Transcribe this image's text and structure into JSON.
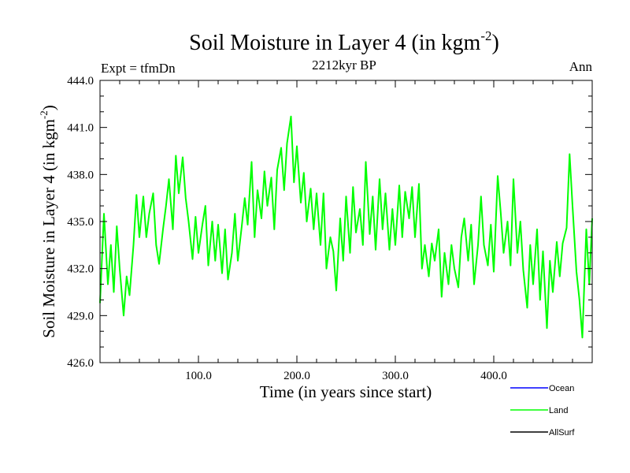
{
  "header": {
    "title_main": "Soil Moisture in Layer 4 (in kgm",
    "title_exp": "-2",
    "title_close": ")",
    "expt": "Expt = tfmDn",
    "subtitle": "2212kyr BP",
    "season": "Ann"
  },
  "legend": {
    "items": [
      {
        "label": "Ocean",
        "color": "#0000ff"
      },
      {
        "label": "Land",
        "color": "#00ff00"
      },
      {
        "label": "AllSurf",
        "color": "#000000"
      }
    ]
  },
  "chart_data": {
    "type": "line",
    "title": "Soil Moisture in Layer 4 (in kgm-2)",
    "xlabel": "Time (in years since start)",
    "ylabel_main": "Soil Moisture in Layer 4 (in kgm",
    "ylabel_exp": "-2",
    "ylabel_close": ")",
    "xlim": [
      0,
      500
    ],
    "ylim": [
      426,
      444
    ],
    "x_ticks": [
      100,
      200,
      300,
      400
    ],
    "x_tick_labels": [
      "100.0",
      "200.0",
      "300.0",
      "400.0"
    ],
    "y_ticks": [
      426,
      429,
      432,
      435,
      438,
      441,
      444
    ],
    "y_tick_labels": [
      "426.0",
      "429.0",
      "432.0",
      "435.0",
      "438.0",
      "441.0",
      "444.0"
    ],
    "series": [
      {
        "name": "Land",
        "color": "#00ff00",
        "x": [
          0,
          4,
          8,
          11,
          14,
          17,
          20,
          24,
          27,
          30,
          34,
          37,
          40,
          44,
          47,
          50,
          54,
          57,
          60,
          64,
          67,
          70,
          74,
          77,
          80,
          84,
          87,
          90,
          94,
          97,
          100,
          104,
          107,
          110,
          114,
          117,
          120,
          124,
          127,
          130,
          134,
          137,
          140,
          144,
          147,
          150,
          154,
          157,
          160,
          164,
          167,
          170,
          174,
          177,
          180,
          184,
          187,
          190,
          194,
          197,
          200,
          204,
          207,
          210,
          214,
          217,
          220,
          224,
          227,
          230,
          234,
          237,
          240,
          244,
          247,
          250,
          254,
          257,
          260,
          264,
          267,
          270,
          274,
          277,
          280,
          284,
          287,
          290,
          294,
          297,
          300,
          304,
          307,
          310,
          314,
          317,
          320,
          324,
          327,
          330,
          334,
          337,
          340,
          344,
          347,
          350,
          354,
          357,
          360,
          364,
          367,
          370,
          374,
          377,
          380,
          384,
          387,
          390,
          394,
          397,
          400,
          404,
          407,
          410,
          414,
          417,
          420,
          424,
          427,
          430,
          434,
          437,
          440,
          444,
          447,
          450,
          454,
          457,
          460,
          464,
          467,
          470,
          474,
          477,
          480,
          484,
          487,
          490,
          494,
          497,
          500
        ],
        "values": [
          429.8,
          435.5,
          431.0,
          433.5,
          430.5,
          434.7,
          432.0,
          429.0,
          431.5,
          430.3,
          433.5,
          436.7,
          434.0,
          436.6,
          434.0,
          435.5,
          436.8,
          433.5,
          432.3,
          434.5,
          436.0,
          437.7,
          434.5,
          439.2,
          436.8,
          439.1,
          436.5,
          435.0,
          432.6,
          435.3,
          433.0,
          434.8,
          436.0,
          432.2,
          435.0,
          432.5,
          434.8,
          431.7,
          434.5,
          431.3,
          433.0,
          435.5,
          432.5,
          434.7,
          436.5,
          434.8,
          438.8,
          434.0,
          437.0,
          435.2,
          438.2,
          436.0,
          437.8,
          434.5,
          438.3,
          439.7,
          437.0,
          440.0,
          441.7,
          437.5,
          439.8,
          436.2,
          438.1,
          435.0,
          437.1,
          434.5,
          436.8,
          433.5,
          436.8,
          432.0,
          434.0,
          433.1,
          430.6,
          435.2,
          432.5,
          436.6,
          433.0,
          437.2,
          434.3,
          435.8,
          433.5,
          438.8,
          434.2,
          436.6,
          433.2,
          437.7,
          434.5,
          436.8,
          433.2,
          435.8,
          433.5,
          437.3,
          434.0,
          436.9,
          435.2,
          437.2,
          434.0,
          437.4,
          432.0,
          433.5,
          431.5,
          433.6,
          432.5,
          434.5,
          430.2,
          433.0,
          431.0,
          433.5,
          432.0,
          430.8,
          434.0,
          435.2,
          432.5,
          434.8,
          431.0,
          433.5,
          436.6,
          433.5,
          432.2,
          434.8,
          431.8,
          437.9,
          435.6,
          433.0,
          435.0,
          432.2,
          437.7,
          433.0,
          435.0,
          431.9,
          429.5,
          433.5,
          431.0,
          434.5,
          430.0,
          433.1,
          428.2,
          432.5,
          430.5,
          433.7,
          431.5,
          433.6,
          434.6,
          439.3,
          436.0,
          431.8,
          430.0,
          427.6,
          434.5,
          431.0,
          435.2
        ]
      }
    ]
  }
}
